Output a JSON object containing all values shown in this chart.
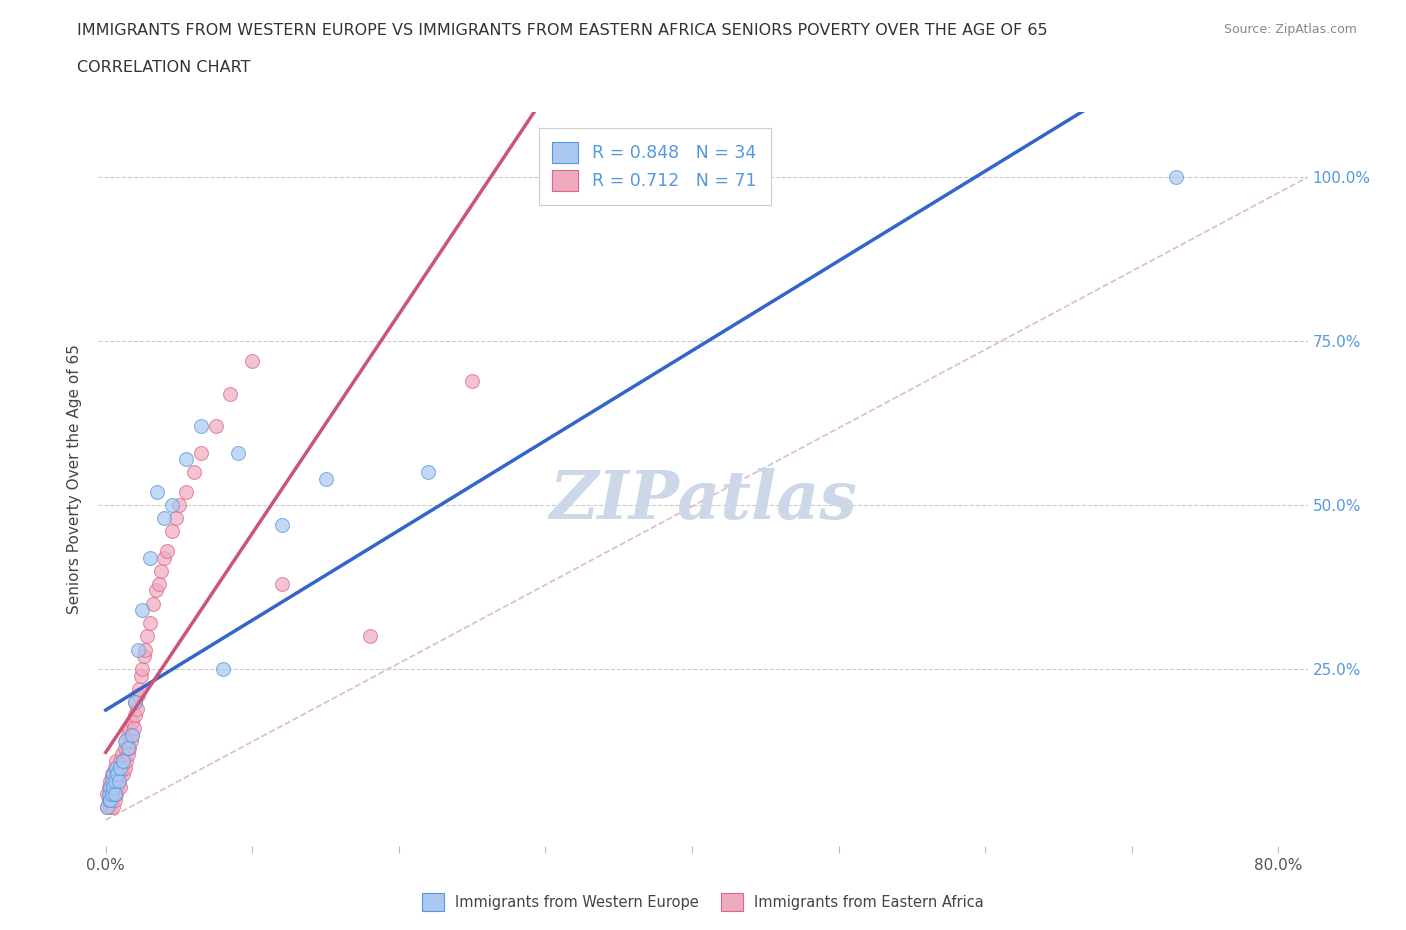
{
  "title_line1": "IMMIGRANTS FROM WESTERN EUROPE VS IMMIGRANTS FROM EASTERN AFRICA SENIORS POVERTY OVER THE AGE OF 65",
  "title_line2": "CORRELATION CHART",
  "source_text": "Source: ZipAtlas.com",
  "ylabel_label": "Seniors Poverty Over the Age of 65",
  "legend_label1": "Immigrants from Western Europe",
  "legend_label2": "Immigrants from Eastern Africa",
  "r1": 0.848,
  "n1": 34,
  "r2": 0.712,
  "n2": 71,
  "color_blue": "#aac8f0",
  "color_pink": "#f0aabf",
  "color_blue_dark": "#5599dd",
  "color_pink_dark": "#dd6688",
  "trend_color_blue": "#3366cc",
  "trend_color_pink": "#cc5577",
  "dash_color": "#cccccc",
  "watermark_color": "#ccd8e8",
  "background_color": "#ffffff",
  "blue_x": [
    0.001,
    0.002,
    0.002,
    0.003,
    0.003,
    0.004,
    0.004,
    0.005,
    0.005,
    0.006,
    0.006,
    0.007,
    0.008,
    0.009,
    0.01,
    0.012,
    0.013,
    0.015,
    0.018,
    0.02,
    0.022,
    0.025,
    0.03,
    0.035,
    0.04,
    0.045,
    0.055,
    0.065,
    0.08,
    0.09,
    0.12,
    0.15,
    0.22,
    0.73
  ],
  "blue_y": [
    0.04,
    0.05,
    0.06,
    0.05,
    0.07,
    0.06,
    0.08,
    0.07,
    0.09,
    0.06,
    0.08,
    0.1,
    0.09,
    0.08,
    0.1,
    0.11,
    0.14,
    0.13,
    0.15,
    0.2,
    0.28,
    0.34,
    0.42,
    0.52,
    0.48,
    0.5,
    0.57,
    0.62,
    0.25,
    0.58,
    0.47,
    0.54,
    0.55,
    1.0
  ],
  "pink_x": [
    0.001,
    0.001,
    0.002,
    0.002,
    0.003,
    0.003,
    0.003,
    0.004,
    0.004,
    0.004,
    0.005,
    0.005,
    0.005,
    0.006,
    0.006,
    0.006,
    0.007,
    0.007,
    0.007,
    0.008,
    0.008,
    0.009,
    0.009,
    0.01,
    0.01,
    0.01,
    0.011,
    0.011,
    0.012,
    0.012,
    0.013,
    0.013,
    0.014,
    0.014,
    0.015,
    0.015,
    0.016,
    0.016,
    0.017,
    0.018,
    0.018,
    0.019,
    0.02,
    0.02,
    0.021,
    0.022,
    0.023,
    0.024,
    0.025,
    0.026,
    0.027,
    0.028,
    0.03,
    0.032,
    0.034,
    0.036,
    0.038,
    0.04,
    0.042,
    0.045,
    0.048,
    0.05,
    0.055,
    0.06,
    0.065,
    0.075,
    0.085,
    0.1,
    0.12,
    0.18,
    0.25
  ],
  "pink_y": [
    0.04,
    0.06,
    0.05,
    0.07,
    0.04,
    0.06,
    0.08,
    0.05,
    0.07,
    0.09,
    0.04,
    0.06,
    0.08,
    0.05,
    0.07,
    0.1,
    0.06,
    0.08,
    0.11,
    0.07,
    0.09,
    0.08,
    0.1,
    0.07,
    0.09,
    0.11,
    0.1,
    0.12,
    0.09,
    0.11,
    0.1,
    0.13,
    0.11,
    0.14,
    0.12,
    0.15,
    0.13,
    0.16,
    0.14,
    0.15,
    0.17,
    0.16,
    0.18,
    0.2,
    0.19,
    0.21,
    0.22,
    0.24,
    0.25,
    0.27,
    0.28,
    0.3,
    0.32,
    0.35,
    0.37,
    0.38,
    0.4,
    0.42,
    0.43,
    0.46,
    0.48,
    0.5,
    0.52,
    0.55,
    0.58,
    0.62,
    0.67,
    0.72,
    0.38,
    0.3,
    0.69
  ],
  "xlim": [
    -0.005,
    0.82
  ],
  "ylim": [
    -0.02,
    1.1
  ],
  "xticks": [
    0.0,
    0.1,
    0.2,
    0.3,
    0.4,
    0.5,
    0.6,
    0.7,
    0.8
  ],
  "yticks": [
    0.0,
    0.25,
    0.5,
    0.75,
    1.0
  ]
}
